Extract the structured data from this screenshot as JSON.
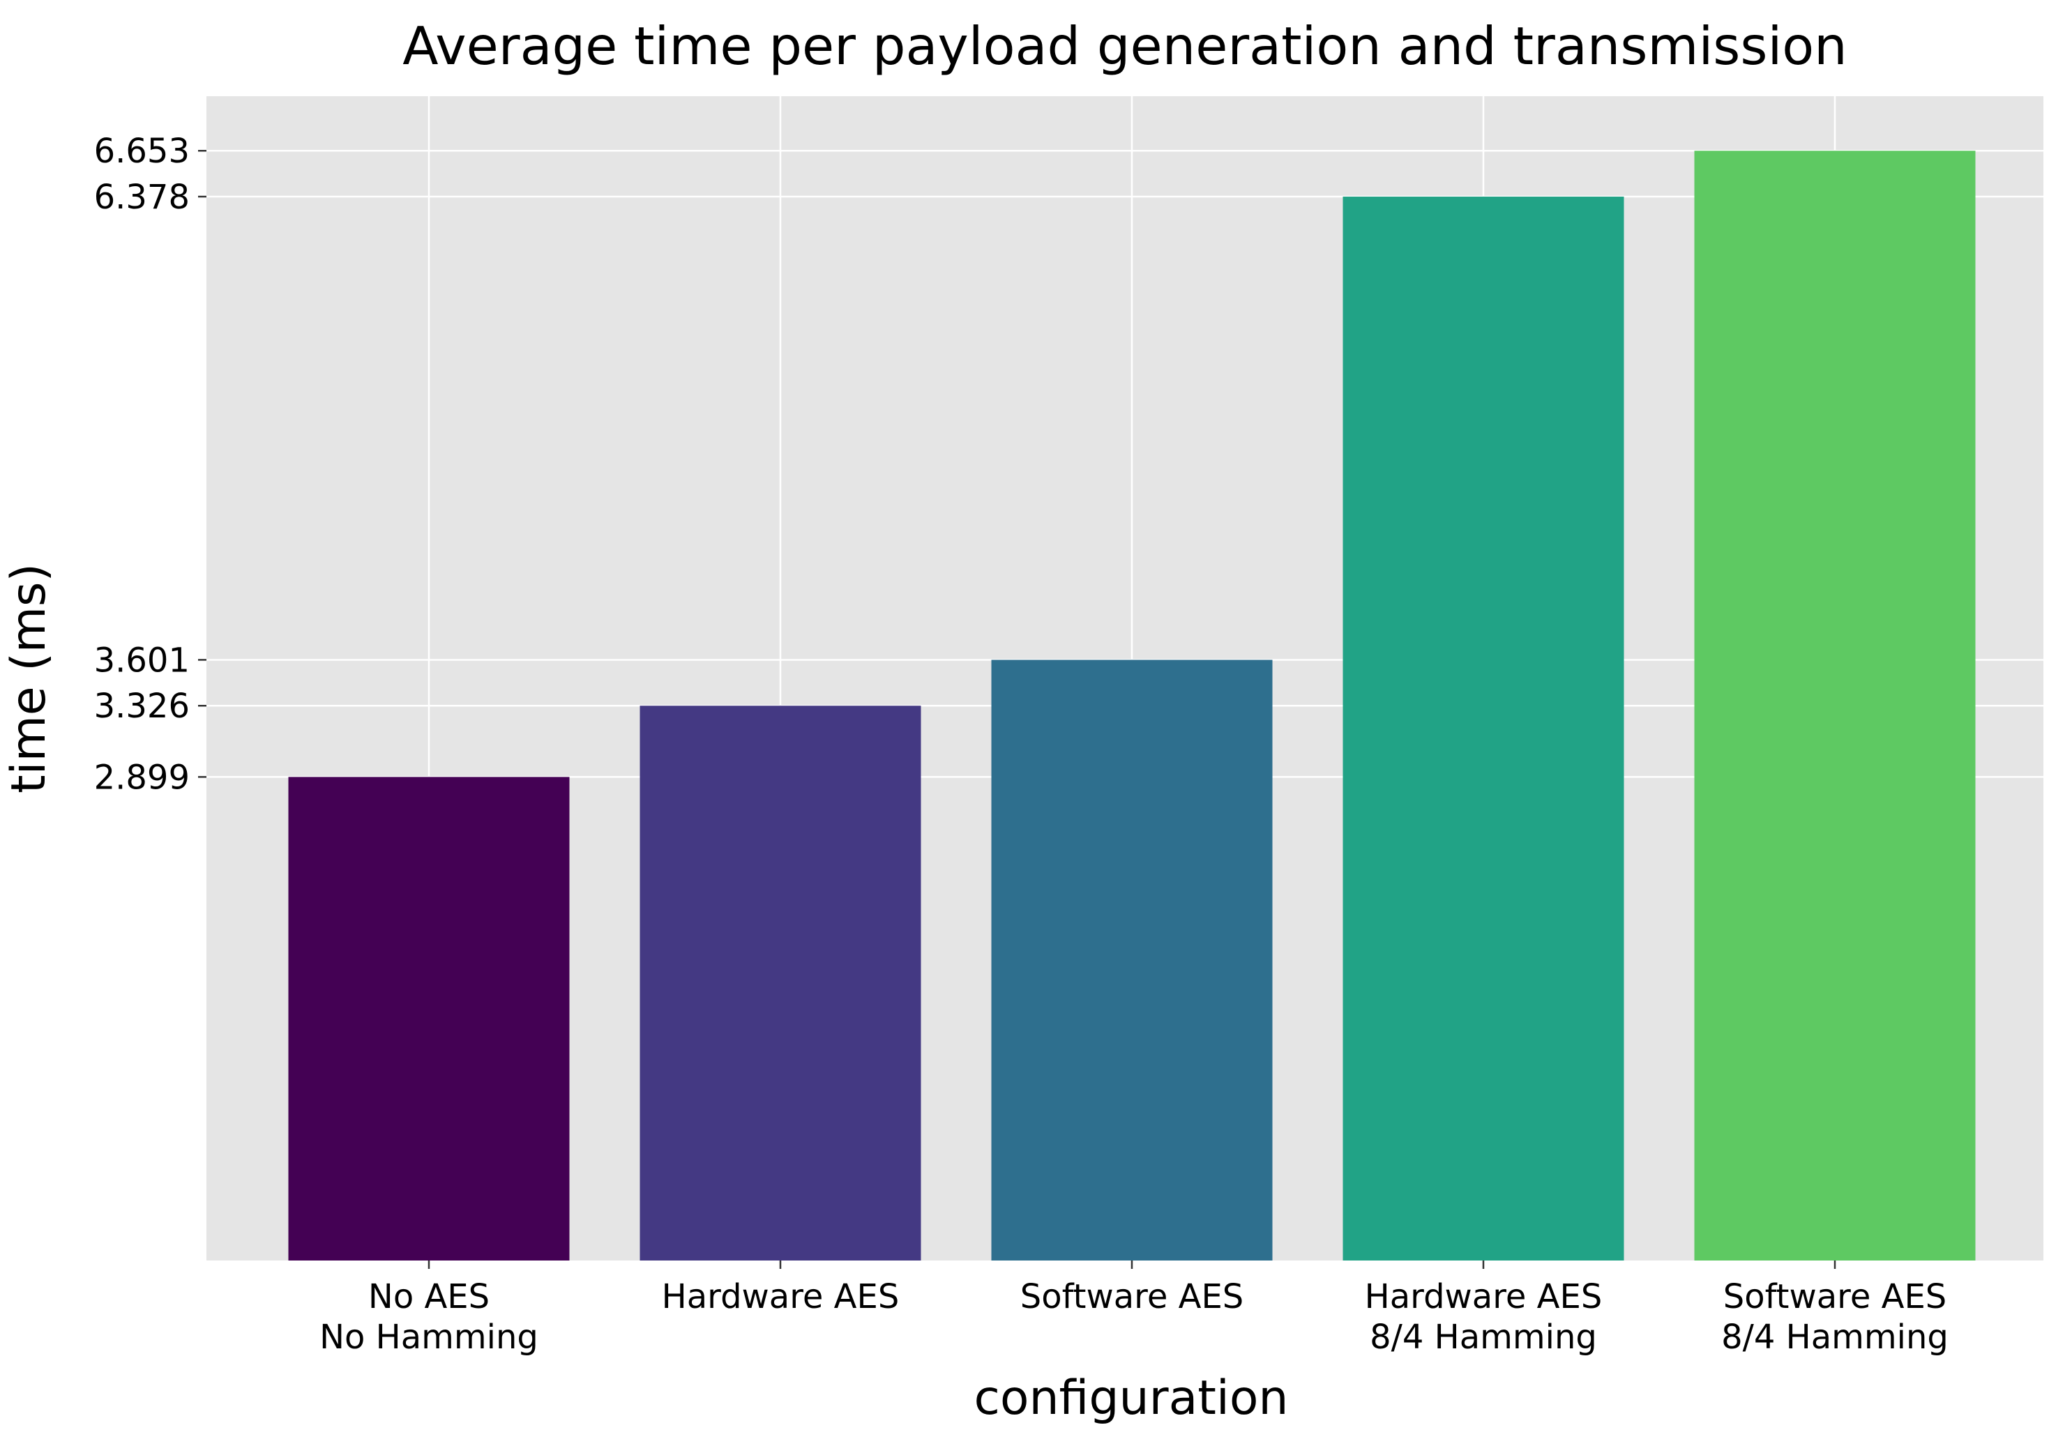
{
  "chart_data": {
    "type": "bar",
    "title": "Average time per payload generation and transmission",
    "xlabel": "configuration",
    "ylabel": "time (ms)",
    "categories": [
      [
        "No AES",
        "No Hamming"
      ],
      [
        "Hardware AES"
      ],
      [
        "Software AES"
      ],
      [
        "Hardware AES",
        "8/4 Hamming"
      ],
      [
        "Software AES",
        "8/4 Hamming"
      ]
    ],
    "values": [
      2.899,
      3.326,
      3.601,
      6.378,
      6.653
    ],
    "bar_colors": [
      "#440154",
      "#443983",
      "#2e6f8e",
      "#21a386",
      "#5ec962"
    ],
    "yticks": [
      "2.899",
      "3.326",
      "3.601",
      "6.378",
      "6.653"
    ],
    "ylim": [
      0,
      6.98
    ],
    "grid": true,
    "background_color": "#e5e5e5",
    "grid_color": "#ffffff"
  }
}
